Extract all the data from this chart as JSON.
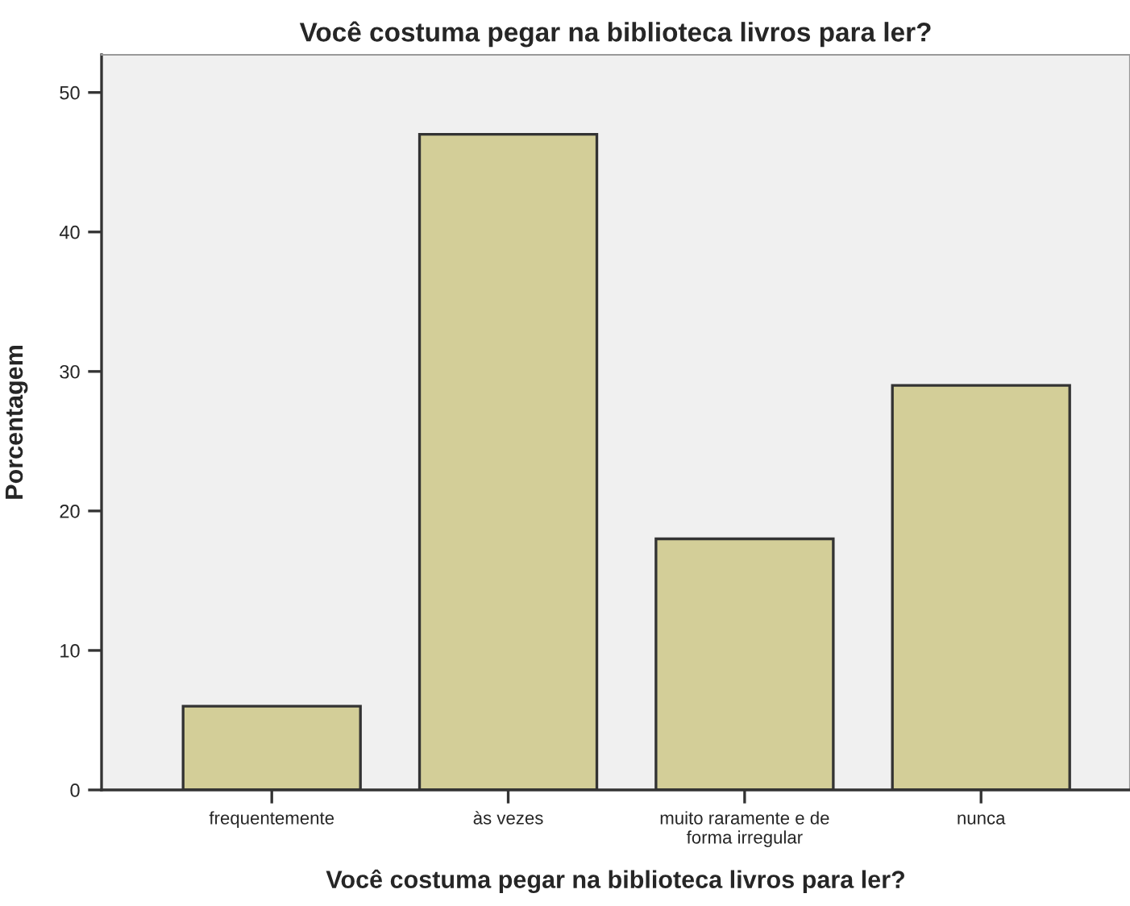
{
  "chart_data": {
    "type": "bar",
    "title": "Você costuma pegar na biblioteca livros para ler?",
    "xlabel": "Você costuma pegar na biblioteca livros para ler?",
    "ylabel": "Porcentagem",
    "categories": [
      "frequentemente",
      "às vezes",
      "muito raramente e de\nforma irregular",
      "nunca"
    ],
    "values": [
      6,
      47,
      18,
      29
    ],
    "color": "#d3ce98",
    "ylim": [
      0,
      52.7
    ],
    "yticks": [
      0,
      10,
      20,
      30,
      40,
      50
    ],
    "grid": false,
    "legend": false
  }
}
